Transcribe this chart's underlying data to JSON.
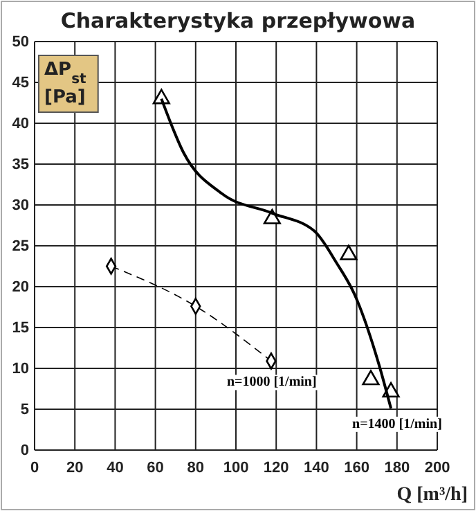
{
  "chart_data": {
    "type": "line",
    "title": "Charakterystyka przepływowa",
    "xlabel": "Q [m³/h]",
    "ylabel": "ΔP$_{st}$ [Pa]",
    "xlim": [
      0,
      200
    ],
    "xticks": [
      0,
      20,
      40,
      60,
      80,
      100,
      120,
      140,
      160,
      180,
      200
    ],
    "ylim": [
      0,
      50
    ],
    "yticks": [
      0,
      5,
      10,
      15,
      20,
      25,
      30,
      35,
      40,
      45,
      50
    ],
    "grid": true,
    "series": [
      {
        "type": "scatter",
        "marker": "triangle",
        "color": "#000000",
        "x": [
          63,
          118,
          156,
          167,
          177
        ],
        "values": [
          43,
          28.3,
          23.9,
          8.6,
          7.1
        ]
      },
      {
        "name": "n=1400 [1/min]",
        "marker": "none",
        "line_style": "solid",
        "color": "#000000",
        "x": [
          63,
          74,
          93,
          118,
          139,
          150,
          159,
          171,
          177
        ],
        "values": [
          43,
          36.4,
          31.4,
          29,
          26.8,
          22.9,
          19,
          10.5,
          5.1
        ]
      },
      {
        "name": "n=1000 [1/min]",
        "marker": "diamond",
        "line_style": "dashed",
        "color": "#000000",
        "x": [
          38,
          80,
          117.5
        ],
        "values": [
          22.5,
          17.6,
          10.9
        ]
      }
    ]
  }
}
